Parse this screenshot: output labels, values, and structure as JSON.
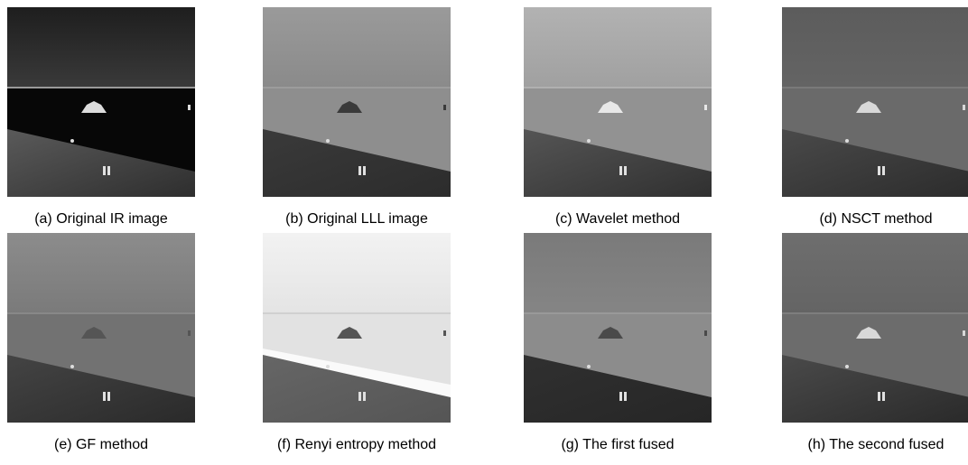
{
  "panels": [
    {
      "caption": "(a) Original IR image"
    },
    {
      "caption": "(b) Original LLL image"
    },
    {
      "caption": "(c)  Wavelet method"
    },
    {
      "caption": "(d)  NSCT method"
    },
    {
      "caption": "(e) GF method"
    },
    {
      "caption": "(f) Renyi entropy method"
    },
    {
      "caption": "(g) The first fused"
    },
    {
      "caption": "(h) The second fused"
    }
  ]
}
